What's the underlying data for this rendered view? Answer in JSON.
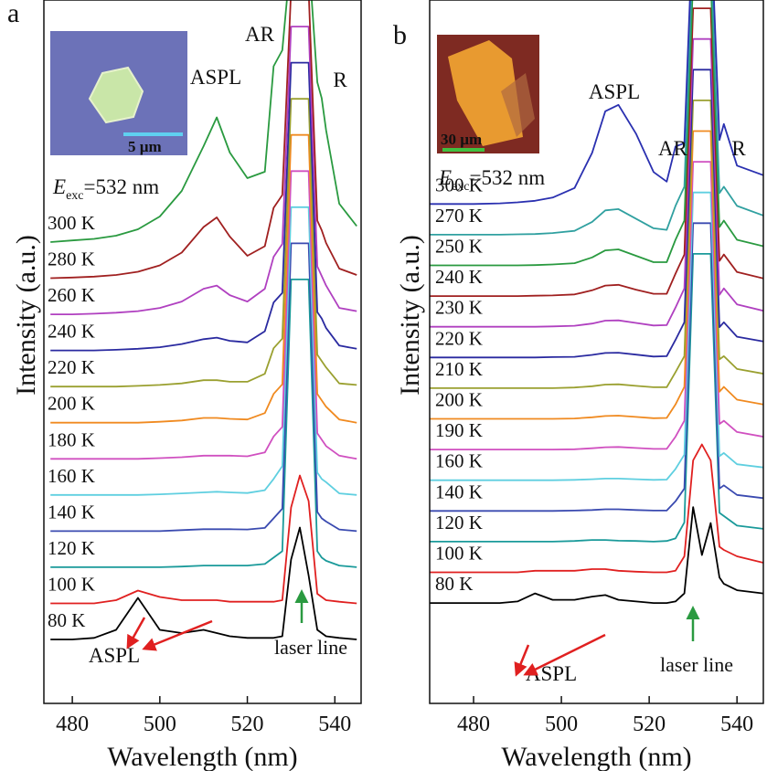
{
  "chart_data": [
    {
      "type": "line",
      "panel_label": "a",
      "xlabel": "Wavelength (nm)",
      "ylabel": "Intensity (a.u.)",
      "xlim": [
        473.5,
        546
      ],
      "ylim": [
        0,
        22
      ],
      "xticks": [
        480,
        500,
        520,
        540
      ],
      "excitation": {
        "symbol": "E",
        "subscript": "exc",
        "value": "=532 nm"
      },
      "inset_scale": "5 µm",
      "annotations": {
        "aspl": "ASPL",
        "ar": "AR",
        "r": "R",
        "aspl_bottom": "ASPL",
        "laser": "laser line"
      },
      "x": [
        475,
        480,
        485,
        490,
        495,
        500,
        505,
        510,
        513,
        516,
        520,
        524,
        526,
        528,
        530,
        532,
        534,
        536,
        537,
        538,
        541,
        545
      ],
      "series": [
        {
          "name": "80 K",
          "color": "#000000",
          "values": [
            0,
            0,
            0.05,
            0.3,
            1.3,
            0.3,
            0.2,
            0.3,
            0.2,
            0.1,
            0.05,
            0.05,
            0.05,
            0.1,
            2.5,
            3.5,
            2.0,
            0.3,
            0.2,
            0.1,
            0.05,
            0
          ]
        },
        {
          "name": "100 K",
          "color": "#e02020",
          "values": [
            0,
            0,
            0,
            0.1,
            0.4,
            0.2,
            0.1,
            0.1,
            0.1,
            0.05,
            0.05,
            0.05,
            0.05,
            0.1,
            3,
            4,
            3.2,
            0.3,
            0.2,
            0.1,
            0.05,
            0
          ]
        },
        {
          "name": "120 K",
          "color": "#1a9a9a",
          "values": [
            0,
            0,
            0,
            0,
            0,
            0,
            0.02,
            0.05,
            0.05,
            0.05,
            0.05,
            0.1,
            0.3,
            0.5,
            9,
            9,
            9,
            0.5,
            0.3,
            0.2,
            0.05,
            0
          ]
        },
        {
          "name": "140 K",
          "color": "#3a4ab0",
          "values": [
            0,
            0,
            0,
            0,
            0,
            0,
            0.03,
            0.06,
            0.06,
            0.06,
            0.05,
            0.1,
            0.4,
            0.7,
            9,
            9,
            9,
            0.6,
            0.4,
            0.3,
            0.05,
            0
          ]
        },
        {
          "name": "160 K",
          "color": "#5fcfe0",
          "values": [
            0,
            0,
            0,
            0,
            0,
            0.02,
            0.05,
            0.08,
            0.1,
            0.08,
            0.06,
            0.15,
            0.5,
            0.9,
            9,
            9,
            9,
            0.7,
            0.5,
            0.4,
            0.05,
            0
          ]
        },
        {
          "name": "180 K",
          "color": "#d050c0",
          "values": [
            0,
            0,
            0,
            0,
            0,
            0.02,
            0.05,
            0.1,
            0.1,
            0.1,
            0.08,
            0.2,
            0.7,
            1.0,
            9,
            9,
            9,
            0.8,
            0.6,
            0.4,
            0.1,
            0
          ]
        },
        {
          "name": "200 K",
          "color": "#f08a20",
          "values": [
            0,
            0,
            0,
            0,
            0,
            0.03,
            0.07,
            0.15,
            0.15,
            0.12,
            0.1,
            0.3,
            0.9,
            1.2,
            9,
            9,
            9,
            0.9,
            0.7,
            0.5,
            0.1,
            0
          ]
        },
        {
          "name": "220 K",
          "color": "#9aa030",
          "values": [
            0,
            0,
            0,
            0,
            0.02,
            0.05,
            0.1,
            0.2,
            0.2,
            0.15,
            0.15,
            0.4,
            1.2,
            1.5,
            9,
            9,
            9,
            1.0,
            0.8,
            0.6,
            0.1,
            0.05
          ]
        },
        {
          "name": "240 K",
          "color": "#2a2aa0",
          "values": [
            0,
            0,
            0,
            0.02,
            0.05,
            0.1,
            0.2,
            0.35,
            0.4,
            0.3,
            0.25,
            0.6,
            1.5,
            1.8,
            9,
            9,
            9,
            1.2,
            1.0,
            0.7,
            0.15,
            0.05
          ]
        },
        {
          "name": "260 K",
          "color": "#b040c0",
          "values": [
            0,
            0,
            0.02,
            0.05,
            0.1,
            0.2,
            0.4,
            0.8,
            0.9,
            0.6,
            0.4,
            0.8,
            1.8,
            2.2,
            9,
            9,
            9,
            1.5,
            1.2,
            0.9,
            0.2,
            0.1
          ]
        },
        {
          "name": "280 K",
          "color": "#a02020",
          "values": [
            0,
            0.02,
            0.05,
            0.1,
            0.2,
            0.4,
            0.8,
            1.6,
            1.9,
            1.3,
            0.7,
            1.0,
            2.2,
            2.6,
            9,
            9,
            9,
            1.8,
            1.5,
            1.1,
            0.3,
            0.1
          ]
        },
        {
          "name": "300 K",
          "color": "#2a9a40",
          "values": [
            0,
            0.05,
            0.1,
            0.2,
            0.4,
            0.8,
            1.6,
            3.0,
            3.9,
            2.8,
            2.0,
            2.2,
            5.5,
            6,
            9,
            9,
            9,
            5,
            4.5,
            3.5,
            1.2,
            0.5
          ]
        }
      ]
    },
    {
      "type": "line",
      "panel_label": "b",
      "xlabel": "Wavelength (nm)",
      "ylabel": "Intensity (a.u.)",
      "xlim": [
        470,
        546
      ],
      "ylim": [
        0,
        22
      ],
      "xticks": [
        480,
        500,
        520,
        540
      ],
      "excitation": {
        "symbol": "E",
        "subscript": "exc",
        "value": "=532 nm"
      },
      "inset_scale": "30 µm",
      "annotations": {
        "aspl": "ASPL",
        "ar": "AR",
        "r": "R",
        "aspl_bottom": "ASPL",
        "laser": "laser line"
      },
      "x": [
        470,
        480,
        486,
        490,
        494,
        498,
        503,
        507,
        510,
        513,
        517,
        521,
        524,
        526,
        528,
        530,
        532,
        534,
        536,
        537,
        540,
        546
      ],
      "series": [
        {
          "name": "80 K",
          "color": "#000000",
          "values": [
            0,
            0,
            0,
            0.05,
            0.3,
            0.1,
            0.1,
            0.2,
            0.25,
            0.1,
            0.05,
            0,
            0,
            0.05,
            0.3,
            3,
            1.5,
            2.5,
            0.8,
            0.6,
            0.4,
            0.3
          ]
        },
        {
          "name": "100 K",
          "color": "#e02020",
          "values": [
            0,
            0,
            0,
            0,
            0.05,
            0.05,
            0.05,
            0.1,
            0.1,
            0.05,
            0.02,
            0,
            0,
            0.05,
            0.5,
            3.5,
            4,
            3.5,
            0.8,
            0.7,
            0.5,
            0.3
          ]
        },
        {
          "name": "120 K",
          "color": "#1a9a9a",
          "values": [
            0,
            0,
            0,
            0,
            0,
            0,
            0.02,
            0.05,
            0.05,
            0.03,
            0.02,
            0,
            0.02,
            0.1,
            0.6,
            9,
            9,
            9,
            0.9,
            0.8,
            0.5,
            0.4
          ]
        },
        {
          "name": "140 K",
          "color": "#3a4ab0",
          "values": [
            0,
            0,
            0,
            0,
            0,
            0,
            0.01,
            0.03,
            0.05,
            0.05,
            0.03,
            0.01,
            0.01,
            0.3,
            0.7,
            9,
            9,
            9,
            0.7,
            0.8,
            0.5,
            0.4
          ]
        },
        {
          "name": "160 K",
          "color": "#5fcfe0",
          "values": [
            0,
            0,
            0,
            0,
            0,
            0,
            0.01,
            0.03,
            0.05,
            0.05,
            0.03,
            0.01,
            0.02,
            0.35,
            0.8,
            9,
            9,
            9,
            0.75,
            0.85,
            0.5,
            0.4
          ]
        },
        {
          "name": "190 K",
          "color": "#d050c0",
          "values": [
            0,
            0,
            0,
            0,
            0,
            0,
            0.01,
            0.04,
            0.07,
            0.08,
            0.05,
            0.02,
            0.02,
            0.4,
            0.9,
            9,
            9,
            9,
            0.8,
            0.9,
            0.55,
            0.4
          ]
        },
        {
          "name": "200 K",
          "color": "#f08a20",
          "values": [
            0,
            0,
            0,
            0,
            0,
            0,
            0.01,
            0.05,
            0.09,
            0.1,
            0.06,
            0.02,
            0.03,
            0.45,
            1.0,
            9,
            9,
            9,
            0.85,
            1.0,
            0.6,
            0.45
          ]
        },
        {
          "name": "210 K",
          "color": "#9aa030",
          "values": [
            0,
            0,
            0,
            0,
            0,
            0,
            0.02,
            0.06,
            0.11,
            0.12,
            0.07,
            0.03,
            0.03,
            0.5,
            1.0,
            9,
            9,
            9,
            0.9,
            1.0,
            0.6,
            0.45
          ]
        },
        {
          "name": "220 K",
          "color": "#2a2aa0",
          "values": [
            0,
            0,
            0,
            0,
            0,
            0.01,
            0.02,
            0.08,
            0.14,
            0.15,
            0.09,
            0.03,
            0.04,
            0.55,
            1.1,
            9,
            9,
            9,
            0.95,
            1.1,
            0.65,
            0.5
          ]
        },
        {
          "name": "230 K",
          "color": "#b040c0",
          "values": [
            0,
            0,
            0,
            0,
            0,
            0.01,
            0.03,
            0.1,
            0.19,
            0.2,
            0.12,
            0.04,
            0.05,
            0.6,
            1.2,
            9,
            9,
            9,
            1.0,
            1.2,
            0.7,
            0.5
          ]
        },
        {
          "name": "240 K",
          "color": "#a02020",
          "values": [
            0,
            0,
            0,
            0,
            0.01,
            0.02,
            0.05,
            0.18,
            0.33,
            0.35,
            0.2,
            0.07,
            0.07,
            0.7,
            1.3,
            9,
            9,
            9,
            1.1,
            1.3,
            0.75,
            0.55
          ]
        },
        {
          "name": "250 K",
          "color": "#2a9a40",
          "values": [
            0,
            0,
            0,
            0,
            0.01,
            0.03,
            0.07,
            0.25,
            0.47,
            0.5,
            0.3,
            0.1,
            0.1,
            0.8,
            1.4,
            9,
            9,
            9,
            1.2,
            1.4,
            0.8,
            0.6
          ]
        },
        {
          "name": "270 K",
          "color": "#30a0a0",
          "values": [
            0,
            0,
            0,
            0.01,
            0.02,
            0.05,
            0.12,
            0.4,
            0.76,
            0.8,
            0.5,
            0.2,
            0.15,
            0.9,
            1.5,
            9,
            9,
            9,
            1.3,
            1.5,
            0.9,
            0.6
          ]
        },
        {
          "name": "300 K",
          "color": "#2a30b0",
          "values": [
            0,
            0,
            0.02,
            0.05,
            0.1,
            0.2,
            0.5,
            1.6,
            2.9,
            3.1,
            2.2,
            1.0,
            0.7,
            1.8,
            1.9,
            9,
            9,
            9,
            2.0,
            2.5,
            1.2,
            0.9
          ]
        }
      ]
    }
  ]
}
